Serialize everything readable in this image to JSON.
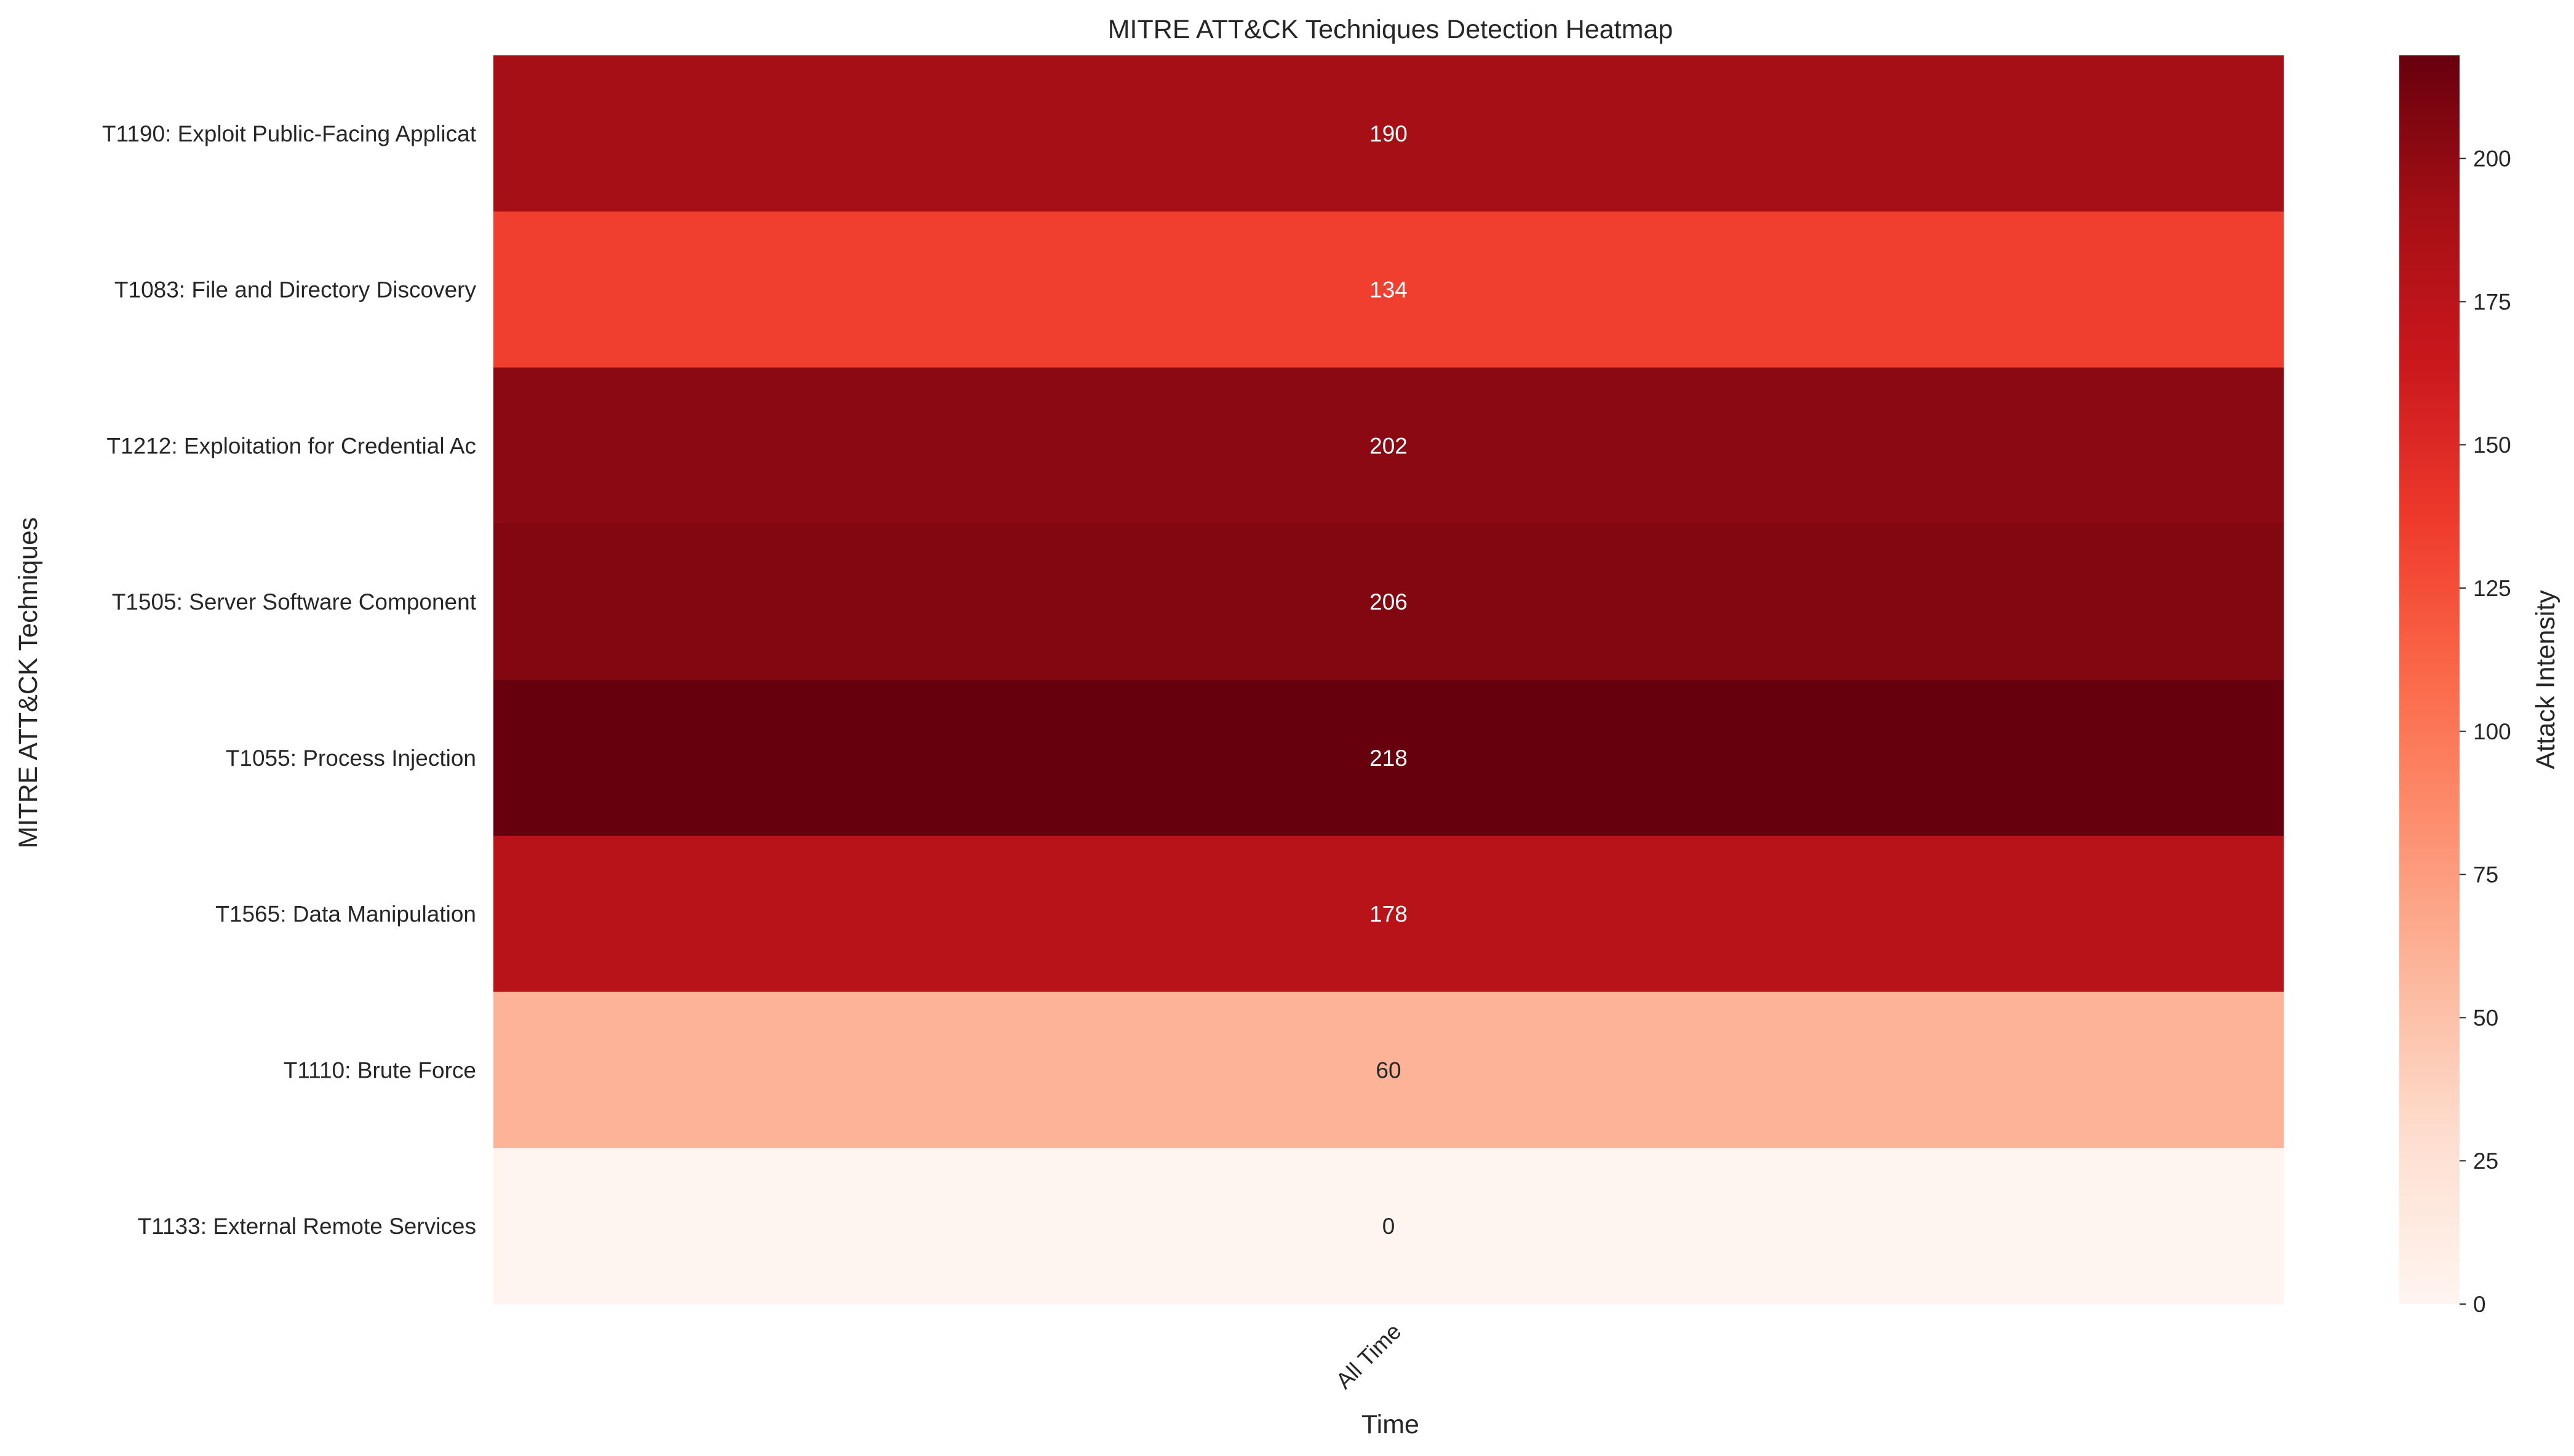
{
  "chart_data": {
    "type": "heatmap",
    "title": "MITRE ATT&CK Techniques Detection Heatmap",
    "xlabel": "Time",
    "ylabel": "MITRE ATT&CK Techniques",
    "x_categories": [
      "All Time"
    ],
    "y_categories": [
      "T1190: Exploit Public-Facing Applicat",
      "T1083: File and Directory Discovery",
      "T1212: Exploitation for Credential Ac",
      "T1505: Server Software Component",
      "T1055: Process Injection",
      "T1565: Data Manipulation",
      "T1110: Brute Force",
      "T1133: External Remote Services"
    ],
    "values": [
      [
        190
      ],
      [
        134
      ],
      [
        202
      ],
      [
        206
      ],
      [
        218
      ],
      [
        178
      ],
      [
        60
      ],
      [
        0
      ]
    ],
    "colorbar": {
      "label": "Attack Intensity",
      "range": [
        0,
        218
      ],
      "ticks": [
        0,
        25,
        50,
        75,
        100,
        125,
        150,
        175,
        200
      ],
      "colormap": "Reds"
    }
  }
}
